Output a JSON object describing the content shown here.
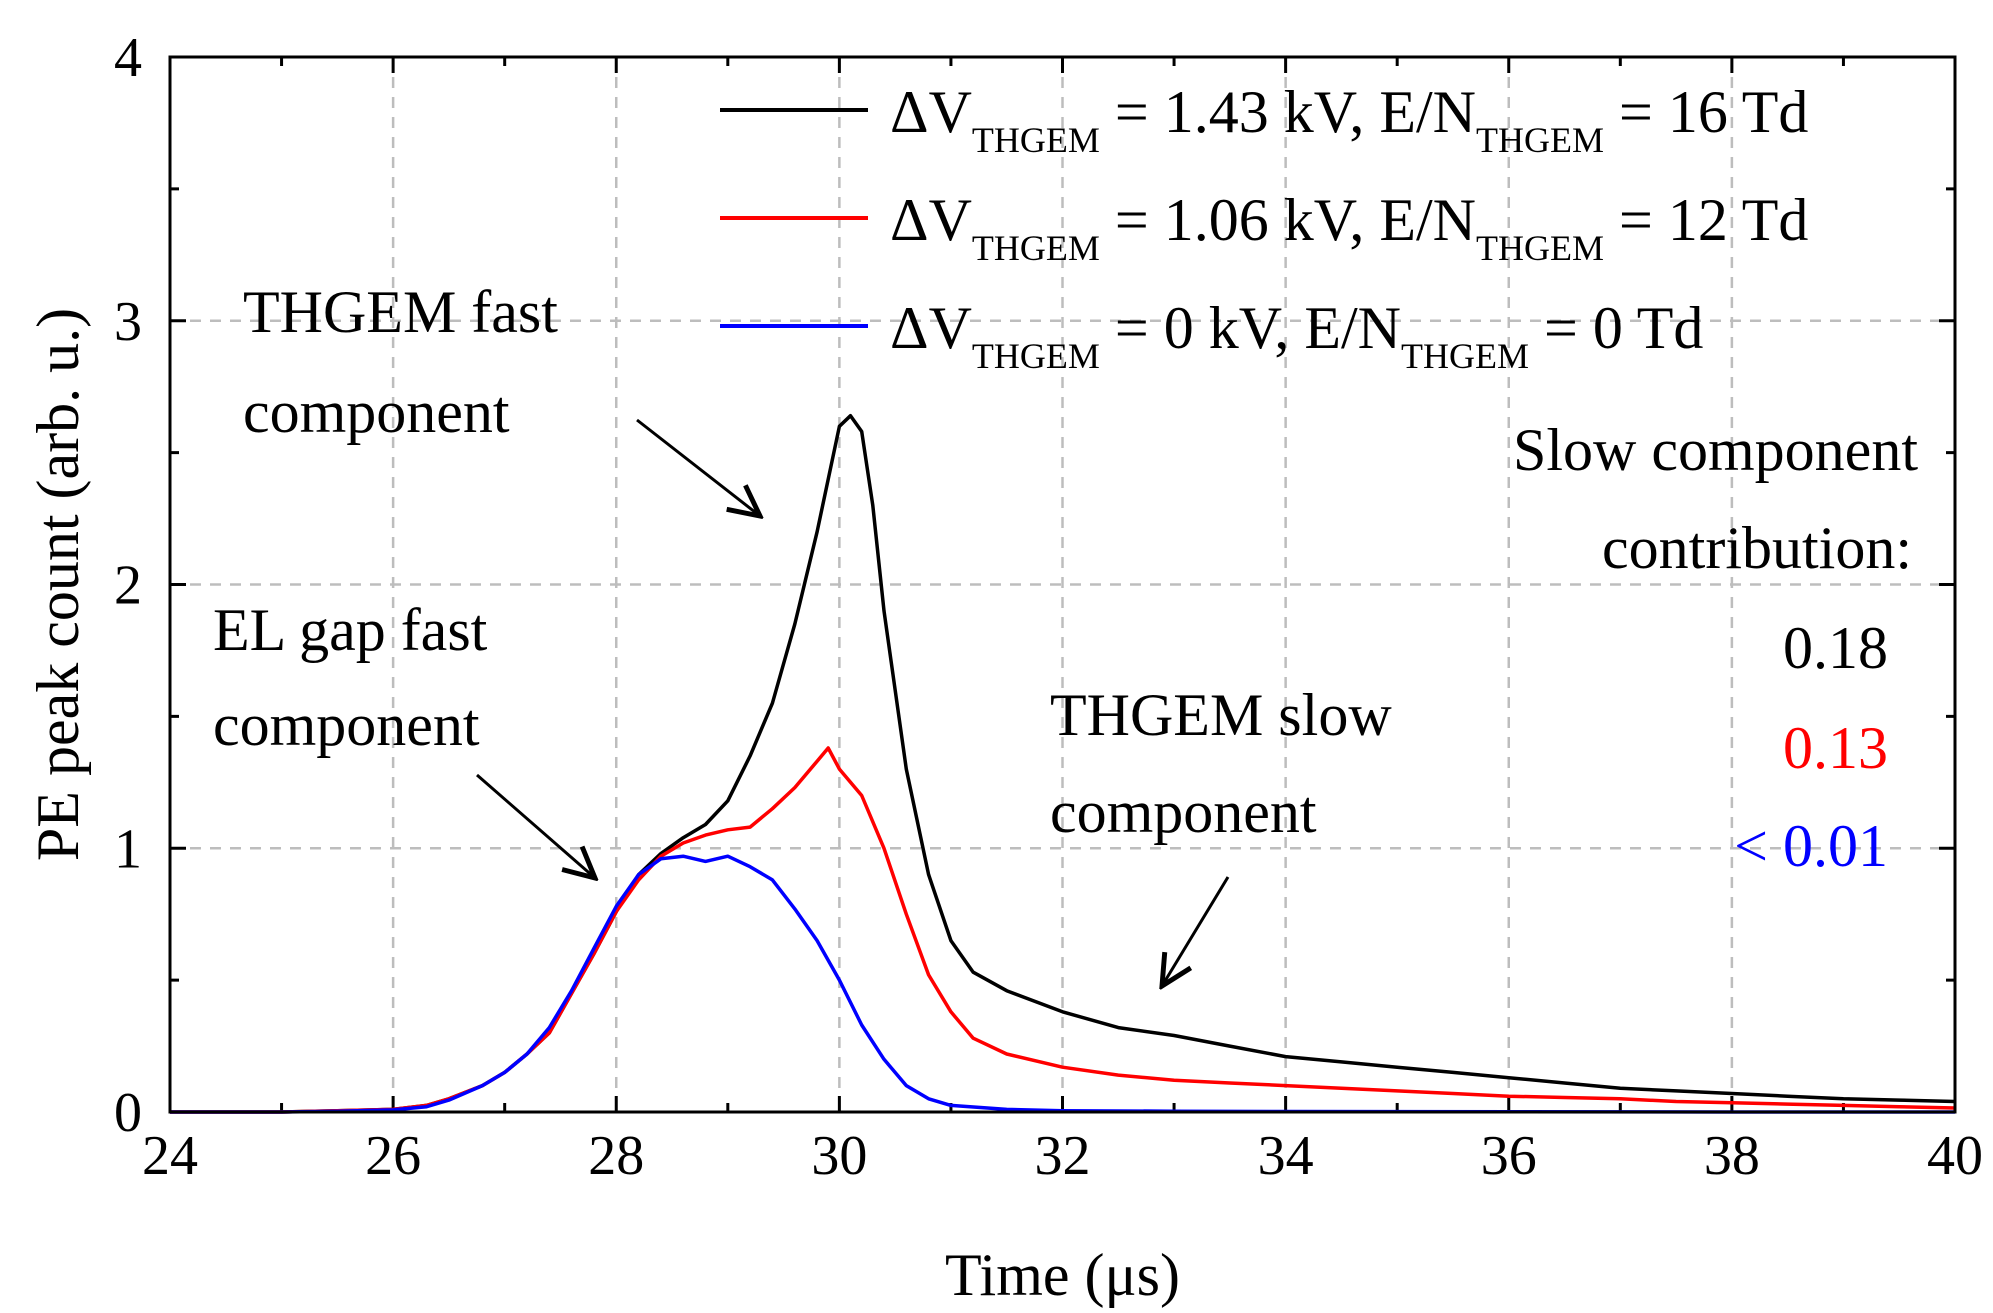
{
  "chart_data": {
    "type": "line",
    "title": "",
    "xlabel": "Time (μs)",
    "ylabel": "PE peak count (arb. u.)",
    "xlim": [
      24,
      40
    ],
    "ylim": [
      0,
      4
    ],
    "xticks": [
      "24",
      "26",
      "28",
      "30",
      "32",
      "34",
      "36",
      "38",
      "40"
    ],
    "yticks": [
      "0",
      "1",
      "2",
      "3",
      "4"
    ],
    "grid": true,
    "legend_position": "top-right",
    "series": [
      {
        "name": "ΔV_THGEM = 1.43 kV, E/N_THGEM = 16 Td",
        "legend": {
          "main1": "ΔV",
          "sub1": "THGEM",
          "main2": " = 1.43 kV, E/N",
          "sub2": "THGEM",
          "main3": " = 16 Td"
        },
        "color": "#000000",
        "points": [
          [
            24,
            0
          ],
          [
            25,
            0
          ],
          [
            25.5,
            0.005
          ],
          [
            26,
            0.01
          ],
          [
            26.3,
            0.025
          ],
          [
            26.5,
            0.05
          ],
          [
            26.8,
            0.1
          ],
          [
            27,
            0.15
          ],
          [
            27.2,
            0.22
          ],
          [
            27.4,
            0.3
          ],
          [
            27.6,
            0.45
          ],
          [
            27.8,
            0.6
          ],
          [
            28,
            0.76
          ],
          [
            28.2,
            0.9
          ],
          [
            28.4,
            0.98
          ],
          [
            28.6,
            1.04
          ],
          [
            28.8,
            1.09
          ],
          [
            29,
            1.18
          ],
          [
            29.2,
            1.35
          ],
          [
            29.4,
            1.55
          ],
          [
            29.6,
            1.85
          ],
          [
            29.8,
            2.2
          ],
          [
            30,
            2.6
          ],
          [
            30.1,
            2.64
          ],
          [
            30.2,
            2.58
          ],
          [
            30.3,
            2.3
          ],
          [
            30.4,
            1.9
          ],
          [
            30.6,
            1.3
          ],
          [
            30.8,
            0.9
          ],
          [
            31,
            0.65
          ],
          [
            31.2,
            0.53
          ],
          [
            31.5,
            0.46
          ],
          [
            32,
            0.38
          ],
          [
            32.5,
            0.32
          ],
          [
            33,
            0.29
          ],
          [
            33.5,
            0.25
          ],
          [
            34,
            0.21
          ],
          [
            34.5,
            0.19
          ],
          [
            35,
            0.17
          ],
          [
            35.5,
            0.15
          ],
          [
            36,
            0.13
          ],
          [
            36.5,
            0.11
          ],
          [
            37,
            0.09
          ],
          [
            37.5,
            0.08
          ],
          [
            38,
            0.07
          ],
          [
            38.5,
            0.06
          ],
          [
            39,
            0.05
          ],
          [
            39.5,
            0.045
          ],
          [
            40,
            0.04
          ]
        ]
      },
      {
        "name": "ΔV_THGEM = 1.06 kV, E/N_THGEM = 12 Td",
        "legend": {
          "main1": "ΔV",
          "sub1": "THGEM",
          "main2": " = 1.06 kV, E/N",
          "sub2": "THGEM",
          "main3": " = 12 Td"
        },
        "color": "#ff0000",
        "points": [
          [
            24,
            0
          ],
          [
            25,
            0
          ],
          [
            25.5,
            0.005
          ],
          [
            26,
            0.01
          ],
          [
            26.3,
            0.025
          ],
          [
            26.5,
            0.05
          ],
          [
            26.8,
            0.1
          ],
          [
            27,
            0.15
          ],
          [
            27.2,
            0.22
          ],
          [
            27.4,
            0.3
          ],
          [
            27.6,
            0.45
          ],
          [
            27.8,
            0.6
          ],
          [
            28,
            0.76
          ],
          [
            28.2,
            0.88
          ],
          [
            28.4,
            0.97
          ],
          [
            28.6,
            1.02
          ],
          [
            28.8,
            1.05
          ],
          [
            29,
            1.07
          ],
          [
            29.2,
            1.08
          ],
          [
            29.4,
            1.15
          ],
          [
            29.6,
            1.23
          ],
          [
            29.8,
            1.33
          ],
          [
            29.9,
            1.38
          ],
          [
            30,
            1.3
          ],
          [
            30.2,
            1.2
          ],
          [
            30.4,
            1.0
          ],
          [
            30.6,
            0.75
          ],
          [
            30.8,
            0.52
          ],
          [
            31,
            0.38
          ],
          [
            31.2,
            0.28
          ],
          [
            31.5,
            0.22
          ],
          [
            32,
            0.17
          ],
          [
            32.5,
            0.14
          ],
          [
            33,
            0.12
          ],
          [
            33.5,
            0.11
          ],
          [
            34,
            0.1
          ],
          [
            34.5,
            0.09
          ],
          [
            35,
            0.08
          ],
          [
            35.5,
            0.07
          ],
          [
            36,
            0.06
          ],
          [
            36.5,
            0.055
          ],
          [
            37,
            0.05
          ],
          [
            37.5,
            0.04
          ],
          [
            38,
            0.035
          ],
          [
            38.5,
            0.03
          ],
          [
            39,
            0.025
          ],
          [
            39.5,
            0.02
          ],
          [
            40,
            0.015
          ]
        ]
      },
      {
        "name": "ΔV_THGEM = 0 kV, E/N_THGEM = 0 Td",
        "legend": {
          "main1": "ΔV",
          "sub1": "THGEM",
          "main2": " = 0 kV, E/N",
          "sub2": "THGEM",
          "main3": " = 0 Td"
        },
        "color": "#0000ff",
        "points": [
          [
            24,
            0
          ],
          [
            25,
            0
          ],
          [
            25.5,
            0.003
          ],
          [
            26,
            0.008
          ],
          [
            26.3,
            0.02
          ],
          [
            26.5,
            0.045
          ],
          [
            26.8,
            0.1
          ],
          [
            27,
            0.15
          ],
          [
            27.2,
            0.22
          ],
          [
            27.4,
            0.32
          ],
          [
            27.6,
            0.46
          ],
          [
            27.8,
            0.62
          ],
          [
            28,
            0.78
          ],
          [
            28.2,
            0.9
          ],
          [
            28.4,
            0.96
          ],
          [
            28.6,
            0.97
          ],
          [
            28.8,
            0.95
          ],
          [
            29,
            0.97
          ],
          [
            29.2,
            0.93
          ],
          [
            29.4,
            0.88
          ],
          [
            29.6,
            0.77
          ],
          [
            29.8,
            0.65
          ],
          [
            30,
            0.5
          ],
          [
            30.2,
            0.33
          ],
          [
            30.4,
            0.2
          ],
          [
            30.6,
            0.1
          ],
          [
            30.8,
            0.05
          ],
          [
            31,
            0.025
          ],
          [
            31.5,
            0.01
          ],
          [
            32,
            0.005
          ],
          [
            33,
            0.003
          ],
          [
            34,
            0.002
          ],
          [
            36,
            0.001
          ],
          [
            38,
            0
          ],
          [
            40,
            0
          ]
        ]
      }
    ],
    "annotations": {
      "thgem_fast": [
        "THGEM fast",
        "component"
      ],
      "el_gap_fast": [
        "EL gap fast",
        "component"
      ],
      "thgem_slow": [
        "THGEM slow",
        "component"
      ],
      "slow_title": [
        "Slow component",
        "contribution:"
      ]
    },
    "contributions": [
      {
        "value": "0.18",
        "color": "#000000"
      },
      {
        "value": "0.13",
        "color": "#ff0000"
      },
      {
        "value": "< 0.01",
        "color": "#0000ff"
      }
    ]
  }
}
